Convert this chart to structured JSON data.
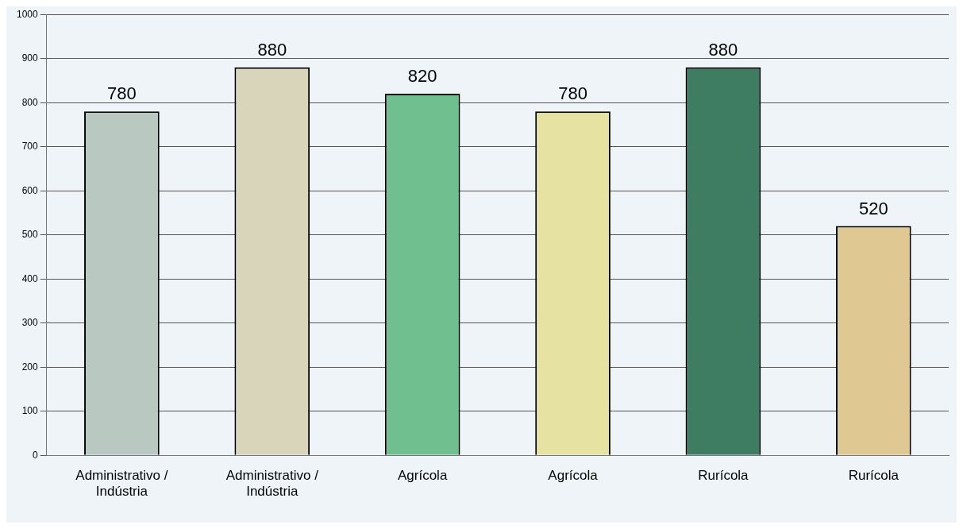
{
  "chart_data": {
    "type": "bar",
    "categories": [
      "Administrativo / Indústria",
      "Administrativo / Indústria",
      "Agrícola",
      "Agrícola",
      "Rurícola",
      "Rurícola"
    ],
    "values": [
      780,
      880,
      820,
      780,
      880,
      520
    ],
    "colors": [
      "#b9c9c2",
      "#d9d5bb",
      "#6fbf8f",
      "#e6e2a2",
      "#3f7d63",
      "#dfc892"
    ],
    "ylim": [
      0,
      1000
    ],
    "yticks": [
      0,
      100,
      200,
      300,
      400,
      500,
      600,
      700,
      800,
      900,
      1000
    ],
    "grid": "y",
    "data_labels": true
  }
}
